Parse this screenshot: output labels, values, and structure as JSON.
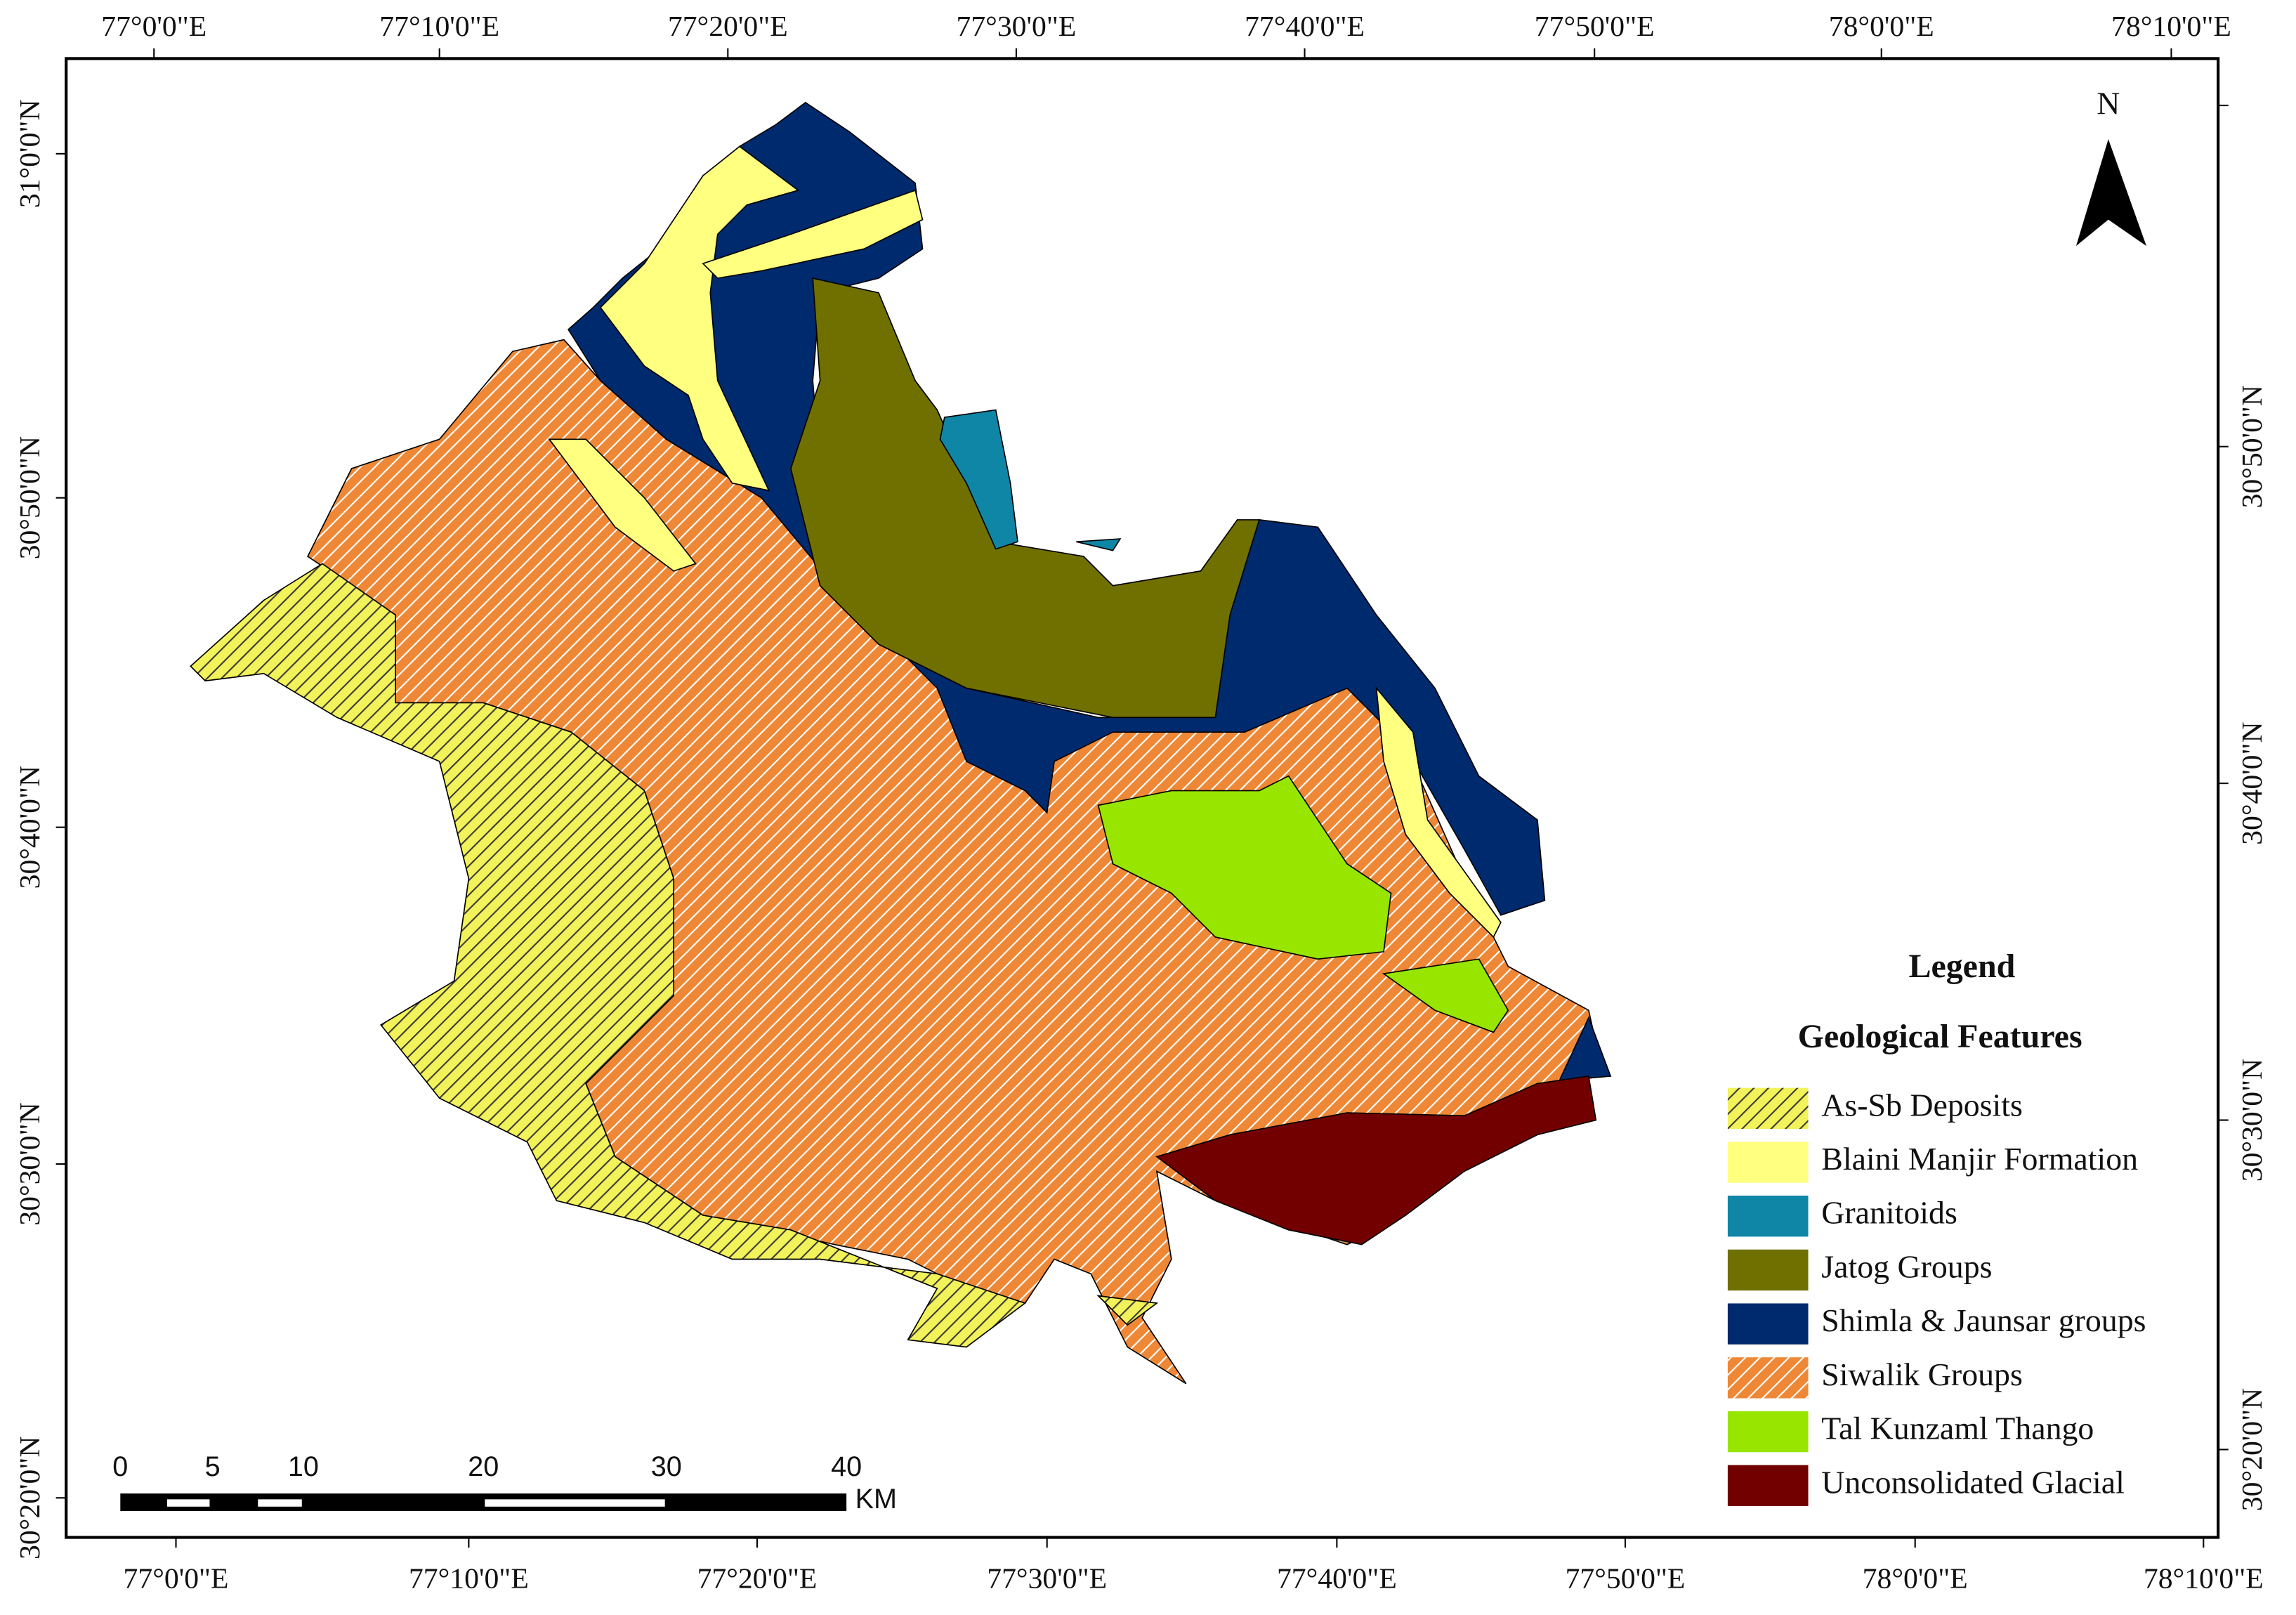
{
  "map": {
    "top_labels": [
      "77°0'0\"E",
      "77°10'0\"E",
      "77°20'0\"E",
      "77°30'0\"E",
      "77°40'0\"E",
      "77°50'0\"E",
      "78°0'0\"E",
      "78°10'0\"E"
    ],
    "bottom_labels": [
      "77°0'0\"E",
      "77°10'0\"E",
      "77°20'0\"E",
      "77°30'0\"E",
      "77°40'0\"E",
      "77°50'0\"E",
      "78°0'0\"E",
      "78°10'0\"E"
    ],
    "left_labels": [
      "31°0'0\"N",
      "30°50'0\"N",
      "30°40'0\"N",
      "30°30'0\"N",
      "30°20'0\"N"
    ],
    "right_labels": [
      "30°50'0\"N",
      "30°40'0\"N",
      "30°30'0\"N",
      "30°20'0\"N"
    ],
    "north": "N",
    "scale_bar": {
      "labels": [
        "0",
        "5",
        "10",
        "20",
        "30",
        "40"
      ],
      "unit": "KM"
    },
    "legend": {
      "title": "Legend",
      "subtitle": "Geological Features",
      "items": [
        {
          "label": "As-Sb Deposits",
          "color": "#f2f25a",
          "hatch": "#3a3a3a"
        },
        {
          "label": "Blaini Manjir Formation",
          "color": "#ffff80"
        },
        {
          "label": "Granitoids",
          "color": "#0f86a6"
        },
        {
          "label": "Jatog Groups",
          "color": "#707000"
        },
        {
          "label": "Shimla & Jaunsar groups",
          "color": "#002a6e"
        },
        {
          "label": "Siwalik Groups",
          "color": "#ee8836",
          "hatch": "#ffffff"
        },
        {
          "label": "Tal Kunzaml Thango",
          "color": "#98e600"
        },
        {
          "label": "Unconsolidated Glacial",
          "color": "#730000"
        }
      ]
    }
  }
}
